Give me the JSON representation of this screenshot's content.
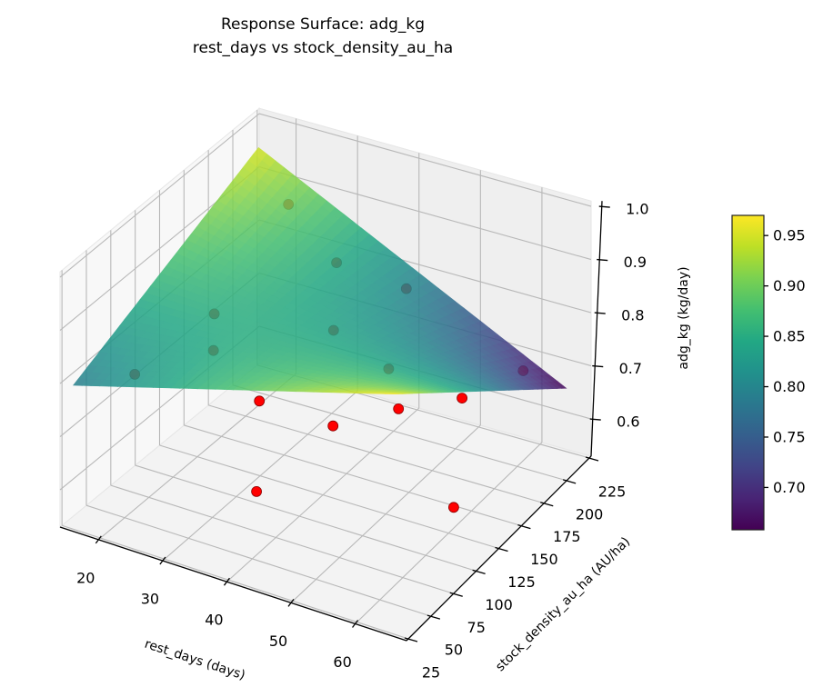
{
  "chart_data": {
    "type": "surface",
    "title": "Response Surface: adg_kg",
    "subtitle": "rest_days vs stock_density_au_ha",
    "xlabel": "rest_days (days)",
    "ylabel": "stock_density_au_ha (AU/ha)",
    "zlabel": "adg_kg (kg/day)",
    "xlim": [
      14,
      68
    ],
    "ylim": [
      23,
      227
    ],
    "zlim": [
      0.53,
      1.01
    ],
    "xticks": [
      "20",
      "30",
      "40",
      "50",
      "60"
    ],
    "yticks": [
      "25",
      "50",
      "75",
      "100",
      "125",
      "150",
      "175",
      "200",
      "225"
    ],
    "zticks": [
      "0.6",
      "0.7",
      "0.8",
      "0.9",
      "1.0"
    ],
    "grid": true,
    "colormap": "viridis",
    "surface": {
      "x": [
        15,
        65
      ],
      "y": [
        30,
        220
      ],
      "z_by_y": [
        [
          0.79,
          0.97
        ],
        [
          0.95,
          0.66
        ]
      ],
      "opacity": 0.85
    },
    "points": {
      "color": "#ff0000",
      "edge_color": "#8b0000",
      "x": [
        23,
        34,
        41,
        25,
        42,
        27,
        19,
        51.5,
        32,
        44,
        51,
        56,
        58,
        38,
        64
      ],
      "y": [
        200,
        179,
        207,
        110,
        123,
        96,
        67,
        118,
        111,
        109,
        132,
        167,
        220,
        68,
        103
      ],
      "z": [
        0.9,
        0.86,
        0.79,
        0.84,
        0.85,
        0.8,
        0.77,
        0.82,
        0.7,
        0.7,
        0.72,
        0.7,
        0.67,
        0.62,
        0.63
      ]
    },
    "colorbar": {
      "range": [
        0.658,
        0.97
      ],
      "ticks": [
        "0.70",
        "0.75",
        "0.80",
        "0.85",
        "0.90",
        "0.95"
      ],
      "location": "right"
    }
  }
}
